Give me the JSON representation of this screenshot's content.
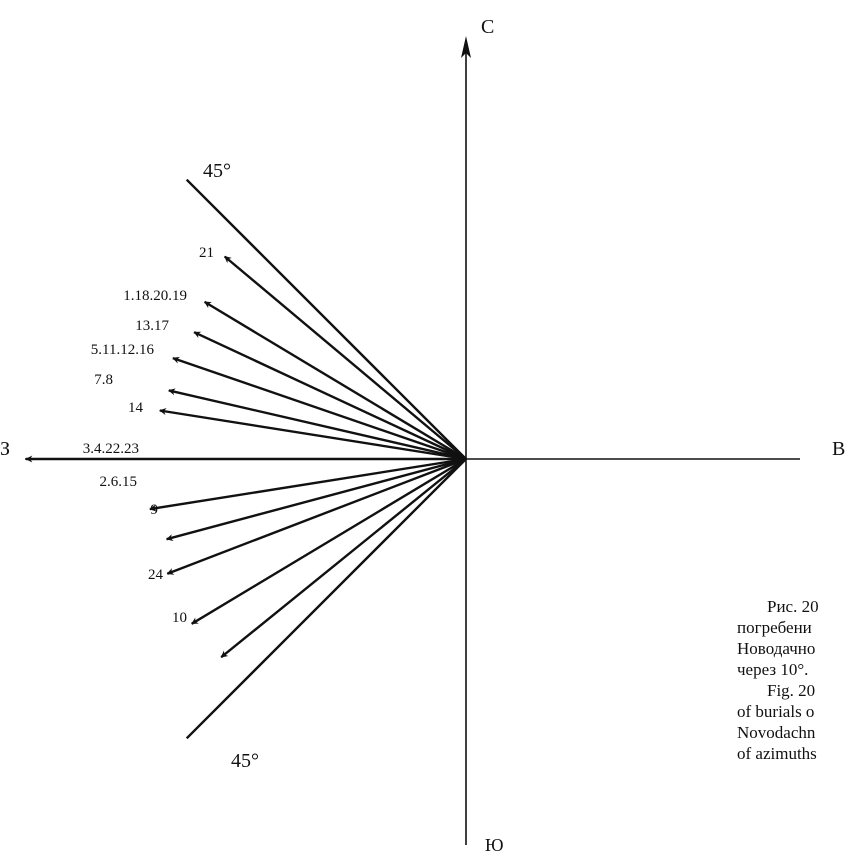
{
  "axes": {
    "north": "С",
    "south": "Ю",
    "west": "З",
    "east": "В"
  },
  "sector_labels": {
    "upper": "45°",
    "lower": "45°"
  },
  "rays": [
    {
      "angle_deg": 45,
      "label": ""
    },
    {
      "angle_deg": 40,
      "label": "21"
    },
    {
      "angle_deg": 31,
      "label": "1.18.20.19"
    },
    {
      "angle_deg": 25,
      "label": "13.17"
    },
    {
      "angle_deg": 19,
      "label": "5.11.12.16"
    },
    {
      "angle_deg": 13,
      "label": "7.8"
    },
    {
      "angle_deg": 9,
      "label": "14"
    },
    {
      "angle_deg": 0,
      "label": "3.4.22.23"
    },
    {
      "angle_deg": -9,
      "label": "2.6.15"
    },
    {
      "angle_deg": -15,
      "label": "9"
    },
    {
      "angle_deg": -21,
      "label": "24"
    },
    {
      "angle_deg": -31,
      "label": "10"
    },
    {
      "angle_deg": -39,
      "label": ""
    },
    {
      "angle_deg": -45,
      "label": ""
    }
  ],
  "caption": [
    "Рис. 20",
    "погребени",
    "Новодачно",
    "через 10°.",
    "Fig. 20",
    "of burials o",
    "Novodachn",
    "of azimuths"
  ]
}
